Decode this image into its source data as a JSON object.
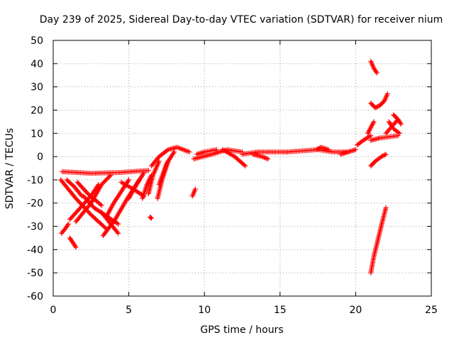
{
  "chart_data": {
    "type": "scatter",
    "title": "Day 239 of 2025, Sidereal Day-to-day VTEC variation (SDTVAR) for receiver nium",
    "xlabel": "GPS time / hours",
    "ylabel": "SDTVAR / TECUs",
    "xlim": [
      0,
      25
    ],
    "ylim": [
      -60,
      50
    ],
    "xticks": [
      0,
      5,
      10,
      15,
      20,
      25
    ],
    "yticks": [
      -60,
      -50,
      -40,
      -30,
      -20,
      -10,
      0,
      10,
      20,
      30,
      40,
      50
    ],
    "grid": true,
    "marker": "+",
    "color": "#ff0000",
    "segments": [
      {
        "x": [
          0.6,
          1.5,
          2.5,
          3.5,
          4.5,
          5.5,
          6.3
        ],
        "y": [
          -6.5,
          -6.8,
          -7.2,
          -7.0,
          -6.8,
          -6.3,
          -6.0
        ]
      },
      {
        "x": [
          0.5,
          1.5,
          2.5,
          3.5
        ],
        "y": [
          -10,
          -18,
          -25,
          -31
        ]
      },
      {
        "x": [
          1.5,
          2.5,
          3.2,
          3.8
        ],
        "y": [
          -28,
          -20,
          -12,
          -8
        ]
      },
      {
        "x": [
          0.9,
          1.4,
          1.9
        ],
        "y": [
          -10,
          -13,
          -17
        ]
      },
      {
        "x": [
          1.1,
          1.8,
          2.6,
          3.0
        ],
        "y": [
          -27,
          -22,
          -16,
          -12
        ]
      },
      {
        "x": [
          1.6,
          2.3,
          3.2
        ],
        "y": [
          -11,
          -16,
          -21
        ]
      },
      {
        "x": [
          2.0,
          2.7,
          3.4,
          4.3
        ],
        "y": [
          -17,
          -22,
          -25,
          -29
        ]
      },
      {
        "x": [
          3.2,
          3.8,
          4.3
        ],
        "y": [
          -24,
          -29,
          -33
        ]
      },
      {
        "x": [
          3.5,
          4.0,
          4.6,
          5.0
        ],
        "y": [
          -26,
          -20,
          -14,
          -10
        ]
      },
      {
        "x": [
          3.3,
          4.1,
          4.9,
          5.7
        ],
        "y": [
          -34,
          -27,
          -18,
          -10
        ]
      },
      {
        "x": [
          4.5,
          5.3,
          6.0
        ],
        "y": [
          -11,
          -14,
          -17
        ]
      },
      {
        "x": [
          5.0,
          5.5,
          6.0
        ],
        "y": [
          -18,
          -12,
          -7
        ]
      },
      {
        "x": [
          0.55,
          0.8,
          1.0
        ],
        "y": [
          -33,
          -31,
          -29
        ]
      },
      {
        "x": [
          1.1,
          1.5
        ],
        "y": [
          -35,
          -39
        ]
      },
      {
        "x": [
          5.9,
          6.2,
          6.5
        ],
        "y": [
          -18,
          -12,
          -8
        ]
      },
      {
        "x": [
          6.3,
          6.6,
          7.0
        ],
        "y": [
          -16,
          -8,
          -2
        ]
      },
      {
        "x": [
          6.5,
          7.0,
          7.6,
          8.2,
          9.0
        ],
        "y": [
          -4,
          0,
          3,
          4,
          2
        ]
      },
      {
        "x": [
          6.9,
          7.2,
          7.6
        ],
        "y": [
          -18,
          -10,
          -2
        ]
      },
      {
        "x": [
          7.0,
          7.5,
          8.0
        ],
        "y": [
          -12,
          -3,
          2
        ]
      },
      {
        "x": [
          6.4,
          6.5
        ],
        "y": [
          -26,
          -26.5
        ]
      },
      {
        "x": [
          9.2,
          9.4
        ],
        "y": [
          -17,
          -14
        ]
      },
      {
        "x": [
          9.3,
          10.5,
          11.5,
          12.5
        ],
        "y": [
          -1,
          1,
          3,
          2
        ]
      },
      {
        "x": [
          9.5,
          10.0,
          10.8
        ],
        "y": [
          1,
          2,
          3
        ]
      },
      {
        "x": [
          11.2,
          12.0,
          12.7
        ],
        "y": [
          3,
          0,
          -4
        ]
      },
      {
        "x": [
          12.5,
          13.5,
          14.5,
          15.5
        ],
        "y": [
          1,
          2,
          2,
          2
        ]
      },
      {
        "x": [
          13.2,
          13.8,
          14.2
        ],
        "y": [
          1,
          0,
          -1
        ]
      },
      {
        "x": [
          15.5,
          16.5,
          17.5,
          18.5,
          19.5
        ],
        "y": [
          2,
          2.5,
          3,
          2,
          2
        ]
      },
      {
        "x": [
          17.4,
          17.7,
          18.2
        ],
        "y": [
          3,
          4,
          3
        ]
      },
      {
        "x": [
          19.0,
          19.5,
          20.0
        ],
        "y": [
          1,
          2,
          3
        ]
      },
      {
        "x": [
          20.1,
          20.5,
          21.0
        ],
        "y": [
          5,
          7,
          9
        ]
      },
      {
        "x": [
          20.8,
          21.2
        ],
        "y": [
          10,
          15
        ]
      },
      {
        "x": [
          21.0,
          21.3,
          21.7,
          22.0
        ],
        "y": [
          -4,
          -2,
          0,
          1
        ]
      },
      {
        "x": [
          21.0,
          21.2,
          21.5,
          21.8,
          22.0
        ],
        "y": [
          -50,
          -43,
          -35,
          -27,
          -22
        ]
      },
      {
        "x": [
          21.0,
          21.2,
          21.4
        ],
        "y": [
          41,
          38,
          36
        ]
      },
      {
        "x": [
          21.0,
          21.3,
          21.6,
          21.9,
          22.1
        ],
        "y": [
          23,
          21,
          22,
          24,
          27
        ]
      },
      {
        "x": [
          21.0,
          21.6,
          22.2,
          22.8
        ],
        "y": [
          7,
          8,
          8.5,
          9
        ]
      },
      {
        "x": [
          22.0,
          22.4,
          22.8
        ],
        "y": [
          10,
          13,
          16
        ]
      },
      {
        "x": [
          22.5,
          22.8,
          23.0
        ],
        "y": [
          18,
          16,
          14
        ]
      },
      {
        "x": [
          22.2,
          22.5,
          22.9
        ],
        "y": [
          15,
          12,
          10
        ]
      }
    ]
  }
}
